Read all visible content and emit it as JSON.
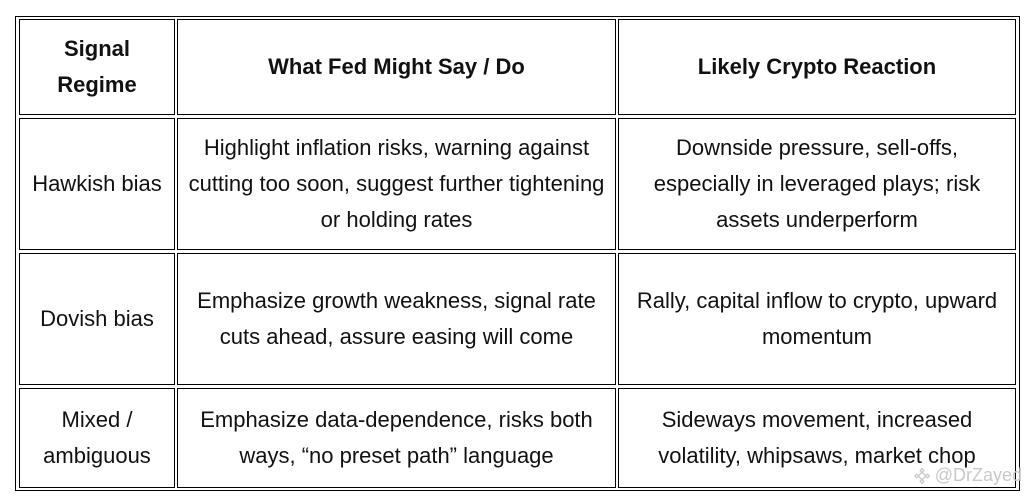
{
  "table": {
    "headers": [
      "Signal Regime",
      "What Fed Might Say / Do",
      "Likely Crypto Reaction"
    ],
    "rows": [
      [
        "Hawkish bias",
        "Highlight inflation risks, warning against cutting too soon, suggest further tightening or holding rates",
        "Downside pressure, sell-offs, especially in leveraged plays; risk assets underperform"
      ],
      [
        "Dovish bias",
        "Emphasize growth weakness, signal rate cuts ahead, assure easing will come",
        "Rally, capital inflow to crypto, upward momentum"
      ],
      [
        "Mixed / ambiguous",
        "Emphasize data-dependence, risks both ways, “no preset path” language",
        "Sideways movement, increased volatility, whipsaws, market chop"
      ]
    ]
  },
  "watermark": {
    "text": "@DrZayed",
    "icon": "binance-logo-icon"
  }
}
